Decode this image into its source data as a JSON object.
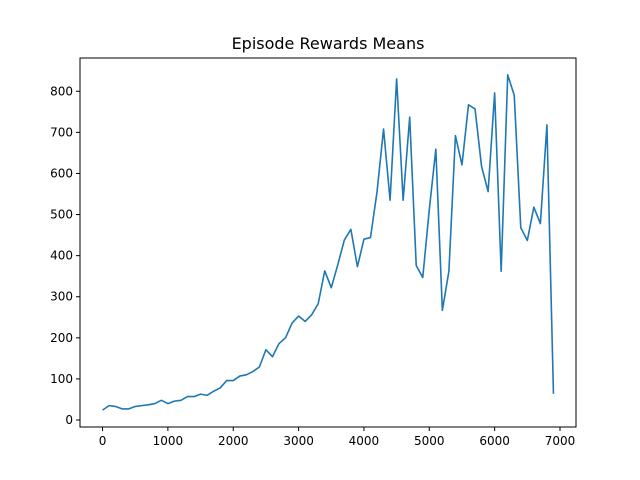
{
  "chart_data": {
    "type": "line",
    "title": "Episode Rewards Means",
    "xlabel": "",
    "ylabel": "",
    "xlim": [
      -345,
      7245
    ],
    "ylim": [
      -17,
      881
    ],
    "x_ticks": [
      0,
      1000,
      2000,
      3000,
      4000,
      5000,
      6000,
      7000
    ],
    "y_ticks": [
      0,
      100,
      200,
      300,
      400,
      500,
      600,
      700,
      800
    ],
    "grid": false,
    "line_color": "#1f77b4",
    "series": [
      {
        "x": [
          0,
          100,
          200,
          300,
          400,
          500,
          600,
          700,
          800,
          900,
          1000,
          1100,
          1200,
          1300,
          1400,
          1500,
          1600,
          1700,
          1800,
          1900,
          2000,
          2100,
          2200,
          2300,
          2400,
          2500,
          2600,
          2700,
          2800,
          2900,
          3000,
          3100,
          3200,
          3300,
          3400,
          3500,
          3600,
          3700,
          3800,
          3900,
          4000,
          4100,
          4200,
          4300,
          4400,
          4500,
          4600,
          4700,
          4800,
          4900,
          5000,
          5100,
          5200,
          5300,
          5400,
          5500,
          5600,
          5700,
          5800,
          5900,
          6000,
          6100,
          6200,
          6300,
          6400,
          6500,
          6600,
          6700,
          6800,
          6900
        ],
        "values": [
          24,
          35,
          33,
          27,
          27,
          33,
          35,
          37,
          40,
          48,
          40,
          46,
          48,
          57,
          57,
          63,
          60,
          70,
          78,
          96,
          96,
          107,
          110,
          118,
          129,
          171,
          154,
          186,
          200,
          236,
          253,
          240,
          256,
          283,
          363,
          322,
          378,
          438,
          464,
          373,
          440,
          444,
          555,
          708,
          535,
          830,
          535,
          737,
          376,
          347,
          512,
          659,
          267,
          362,
          692,
          621,
          767,
          757,
          617,
          556,
          796,
          362,
          840,
          790,
          468,
          437,
          518,
          478,
          718,
          64
        ]
      }
    ]
  }
}
